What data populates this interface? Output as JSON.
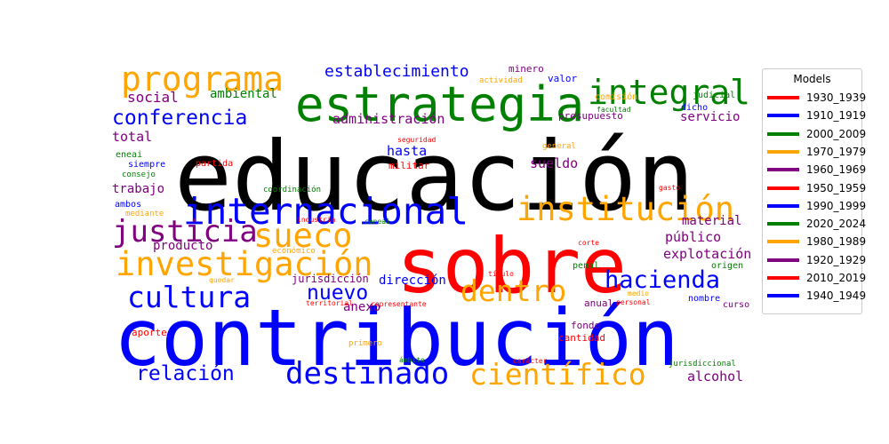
{
  "chart_data": {
    "type": "wordcloud",
    "legend": {
      "title": "Models",
      "placement": "right",
      "entries": [
        {
          "label": "1930_1939",
          "color": "#ff0000"
        },
        {
          "label": "1910_1919",
          "color": "#0000ff"
        },
        {
          "label": "2000_2009",
          "color": "#008000"
        },
        {
          "label": "1970_1979",
          "color": "#ffa500"
        },
        {
          "label": "1960_1969",
          "color": "#800080"
        },
        {
          "label": "1950_1959",
          "color": "#ff0000"
        },
        {
          "label": "1990_1999",
          "color": "#0000ff"
        },
        {
          "label": "2020_2024",
          "color": "#008000"
        },
        {
          "label": "1980_1989",
          "color": "#ffa500"
        },
        {
          "label": "1920_1929",
          "color": "#800080"
        },
        {
          "label": "2010_2019",
          "color": "#ff0000"
        },
        {
          "label": "1940_1949",
          "color": "#0000ff"
        }
      ]
    },
    "words": [
      {
        "text": "educación",
        "color": "#000000"
      },
      {
        "text": "contribución",
        "color": "#0000ff"
      },
      {
        "text": "sobre",
        "color": "#ff0000"
      },
      {
        "text": "estrategia",
        "color": "#008000"
      },
      {
        "text": "internacional",
        "color": "#0000ff"
      },
      {
        "text": "programa",
        "color": "#ffa500"
      },
      {
        "text": "integral",
        "color": "#008000"
      },
      {
        "text": "institución",
        "color": "#ffa500"
      },
      {
        "text": "investigación",
        "color": "#ffa500"
      },
      {
        "text": "sueco",
        "color": "#ffa500"
      },
      {
        "text": "justicia",
        "color": "#800080"
      },
      {
        "text": "cultura",
        "color": "#0000ff"
      },
      {
        "text": "dentro",
        "color": "#ffa500"
      },
      {
        "text": "destinado",
        "color": "#0000ff"
      },
      {
        "text": "científico",
        "color": "#ffa500"
      },
      {
        "text": "hacienda",
        "color": "#0000ff"
      },
      {
        "text": "conferencia",
        "color": "#0000ff"
      },
      {
        "text": "relación",
        "color": "#0000ff"
      },
      {
        "text": "nuevo",
        "color": "#0000ff"
      },
      {
        "text": "establecimiento",
        "color": "#0000ff"
      },
      {
        "text": "social",
        "color": "#800080"
      },
      {
        "text": "ambiental",
        "color": "#008000"
      },
      {
        "text": "administración",
        "color": "#800080"
      },
      {
        "text": "servicio",
        "color": "#800080"
      },
      {
        "text": "total",
        "color": "#800080"
      },
      {
        "text": "hasta",
        "color": "#0000ff"
      },
      {
        "text": "sueldo",
        "color": "#800080"
      },
      {
        "text": "trabajo",
        "color": "#800080"
      },
      {
        "text": "material",
        "color": "#800080"
      },
      {
        "text": "público",
        "color": "#800080"
      },
      {
        "text": "producto",
        "color": "#800080"
      },
      {
        "text": "explotación",
        "color": "#800080"
      },
      {
        "text": "anexo",
        "color": "#800080"
      },
      {
        "text": "dirección",
        "color": "#0000ff"
      },
      {
        "text": "alcohol",
        "color": "#800080"
      },
      {
        "text": "jurisdicción",
        "color": "#800080"
      },
      {
        "text": "minero",
        "color": "#800080"
      },
      {
        "text": "valor",
        "color": "#0000ff"
      },
      {
        "text": "actividad",
        "color": "#ffa500"
      },
      {
        "text": "comisión",
        "color": "#ffa500"
      },
      {
        "text": "judicial",
        "color": "#008000"
      },
      {
        "text": "dicho",
        "color": "#0000ff"
      },
      {
        "text": "facultad",
        "color": "#008000"
      },
      {
        "text": "presupuesto",
        "color": "#800080"
      },
      {
        "text": "seguridad",
        "color": "#ff0000"
      },
      {
        "text": "general",
        "color": "#ffa500"
      },
      {
        "text": "militar",
        "color": "#ff0000"
      },
      {
        "text": "eneai",
        "color": "#008000"
      },
      {
        "text": "siempre",
        "color": "#0000ff"
      },
      {
        "text": "partida",
        "color": "#ff0000"
      },
      {
        "text": "consejo",
        "color": "#008000"
      },
      {
        "text": "coordinación",
        "color": "#008000"
      },
      {
        "text": "gasto",
        "color": "#ff0000"
      },
      {
        "text": "ambos",
        "color": "#0000ff"
      },
      {
        "text": "mediante",
        "color": "#ffa500"
      },
      {
        "text": "industria",
        "color": "#ff0000"
      },
      {
        "text": "ceneai",
        "color": "#008000"
      },
      {
        "text": "corte",
        "color": "#ff0000"
      },
      {
        "text": "económico",
        "color": "#ffa500"
      },
      {
        "text": "origen",
        "color": "#008000"
      },
      {
        "text": "penal",
        "color": "#008000"
      },
      {
        "text": "título",
        "color": "#ff0000"
      },
      {
        "text": "quedar",
        "color": "#ffa500"
      },
      {
        "text": "medio",
        "color": "#ffa500"
      },
      {
        "text": "nombre",
        "color": "#0000ff"
      },
      {
        "text": "personal",
        "color": "#ff0000"
      },
      {
        "text": "anual",
        "color": "#800080"
      },
      {
        "text": "curso",
        "color": "#800080"
      },
      {
        "text": "territorial",
        "color": "#ff0000"
      },
      {
        "text": "representante",
        "color": "#ff0000"
      },
      {
        "text": "aporte",
        "color": "#ff0000"
      },
      {
        "text": "fondo",
        "color": "#800080"
      },
      {
        "text": "cantidad",
        "color": "#ff0000"
      },
      {
        "text": "primero",
        "color": "#ffa500"
      },
      {
        "text": "ámbito",
        "color": "#008000"
      },
      {
        "text": "carácter",
        "color": "#ff0000"
      },
      {
        "text": "jurisdiccional",
        "color": "#008000"
      }
    ]
  }
}
